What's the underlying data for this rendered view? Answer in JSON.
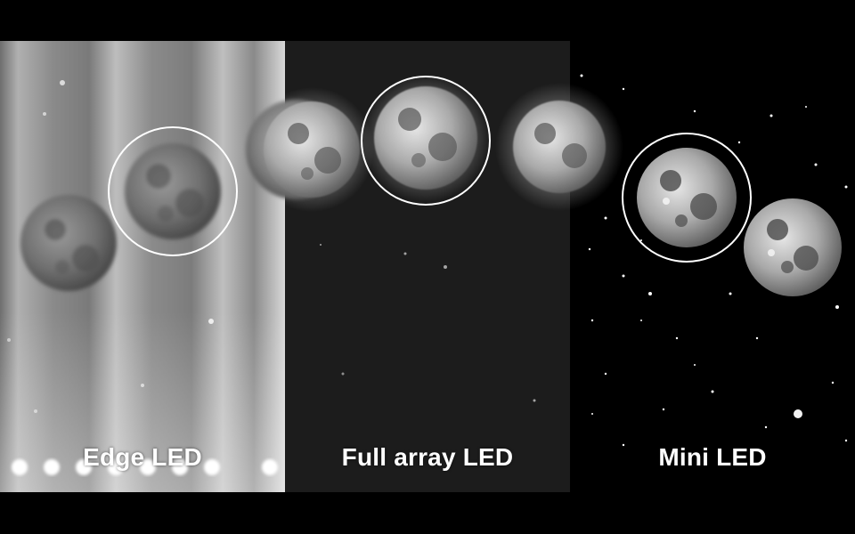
{
  "panels": [
    {
      "label": "Edge LED"
    },
    {
      "label": "Full array LED"
    },
    {
      "label": "Mini LED"
    }
  ]
}
